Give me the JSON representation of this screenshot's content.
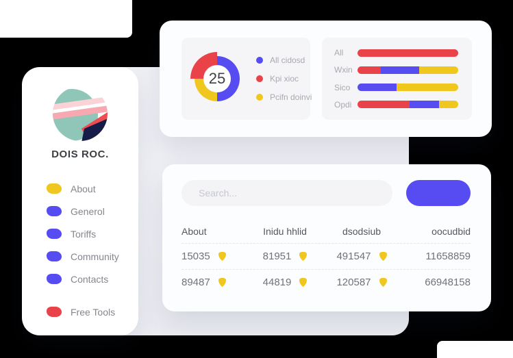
{
  "colors": {
    "purple": "#564CF2",
    "red": "#E94349",
    "yellow": "#EFC71F",
    "teal": "#8FC6B7",
    "navy": "#151C47",
    "pink": "#F8A8B0",
    "pink_light": "#FBD3D6"
  },
  "sidebar": {
    "brand": "DOIS ROC.",
    "items": [
      {
        "label": "About",
        "color": "yellow",
        "separated": false
      },
      {
        "label": "Generol",
        "color": "purple",
        "separated": false
      },
      {
        "label": "Toriffs",
        "color": "purple",
        "separated": false
      },
      {
        "label": "Community",
        "color": "purple",
        "separated": false
      },
      {
        "label": "Contacts",
        "color": "purple",
        "separated": false
      },
      {
        "label": "Free Tools",
        "color": "red",
        "separated": true
      }
    ]
  },
  "stats_card": {
    "donut": {
      "value": "25",
      "legend": [
        {
          "label": "All cidosd",
          "color": "purple"
        },
        {
          "label": "Kpi xioc",
          "color": "red"
        },
        {
          "label": "Pcifn doinvi",
          "color": "yellow"
        }
      ]
    },
    "bars": {
      "rows": [
        {
          "label": "All",
          "segments": [
            {
              "color": "red",
              "pct": 100
            }
          ]
        },
        {
          "label": "Wxin",
          "segments": [
            {
              "color": "red",
              "pct": 23
            },
            {
              "color": "purple",
              "pct": 38
            },
            {
              "color": "yellow",
              "pct": 39
            }
          ]
        },
        {
          "label": "Sico",
          "segments": [
            {
              "color": "purple",
              "pct": 39
            },
            {
              "color": "yellow",
              "pct": 61
            }
          ]
        },
        {
          "label": "Opdi",
          "segments": [
            {
              "color": "red",
              "pct": 52
            },
            {
              "color": "purple",
              "pct": 29
            },
            {
              "color": "yellow",
              "pct": 19
            }
          ]
        }
      ]
    }
  },
  "table_card": {
    "search": {
      "placeholder": "Search..."
    },
    "headers": [
      "About",
      "Inidu hhlid",
      "dsodsiub",
      "oocudbid"
    ],
    "rows": [
      [
        {
          "value": "15035",
          "icon": true
        },
        {
          "value": "81951",
          "icon": true
        },
        {
          "value": "491547",
          "icon": true
        },
        {
          "value": "11658859",
          "icon": false
        }
      ],
      [
        {
          "value": "89487",
          "icon": true
        },
        {
          "value": "44819",
          "icon": true
        },
        {
          "value": "120587",
          "icon": true
        },
        {
          "value": "66948158",
          "icon": false
        }
      ]
    ]
  },
  "chart_data": [
    {
      "type": "pie",
      "labels": [
        "All cidosd",
        "Kpi xioc",
        "Pcifn doinvi"
      ],
      "values": [
        50,
        25,
        25
      ],
      "colors": [
        "#564CF2",
        "#E94349",
        "#EFC71F"
      ],
      "center_value": "25",
      "legend_position": "right"
    },
    {
      "type": "bar",
      "orientation": "horizontal",
      "stacked": true,
      "categories": [
        "All",
        "Wxin",
        "Sico",
        "Opdi"
      ],
      "series": [
        {
          "name": "red",
          "values": [
            100,
            23,
            0,
            52
          ]
        },
        {
          "name": "purple",
          "values": [
            0,
            38,
            39,
            29
          ]
        },
        {
          "name": "yellow",
          "values": [
            0,
            39,
            61,
            19
          ]
        }
      ],
      "xlim": [
        0,
        100
      ]
    }
  ]
}
